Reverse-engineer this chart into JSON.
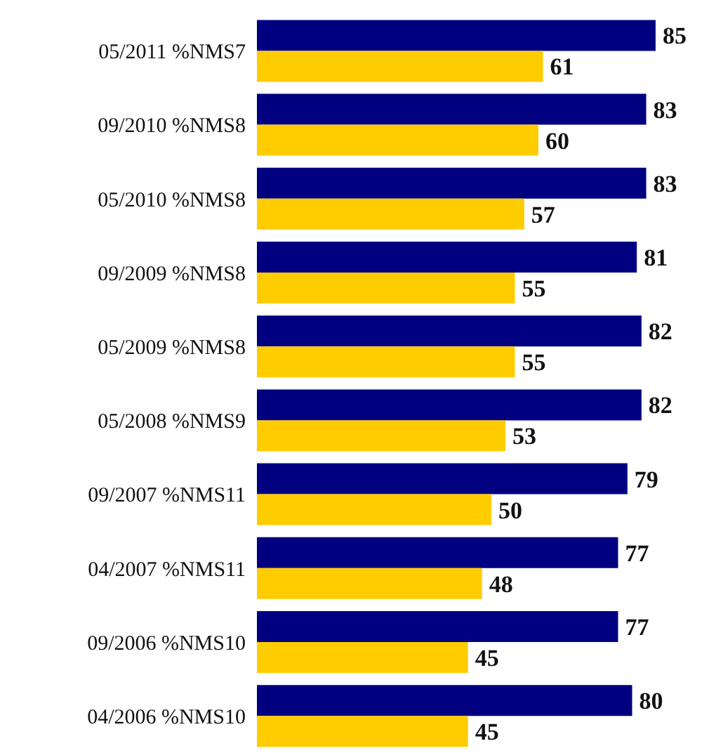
{
  "chart_data": {
    "type": "bar",
    "orientation": "horizontal",
    "categories": [
      "05/2011 %NMS7",
      "09/2010 %NMS8",
      "05/2010 %NMS8",
      "09/2009 %NMS8",
      "05/2009 %NMS8",
      "05/2008 %NMS9",
      "09/2007 %NMS11",
      "04/2007 %NMS11",
      "09/2006 %NMS10",
      "04/2006 %NMS10"
    ],
    "series": [
      {
        "color": "#000080",
        "values": [
          85,
          83,
          83,
          81,
          82,
          82,
          79,
          77,
          77,
          80
        ]
      },
      {
        "color": "#ffcc00",
        "values": [
          61,
          60,
          57,
          55,
          55,
          53,
          50,
          48,
          45,
          45
        ]
      }
    ],
    "data_labels": true,
    "grid": false,
    "legend": false,
    "tick_labels": "y"
  }
}
